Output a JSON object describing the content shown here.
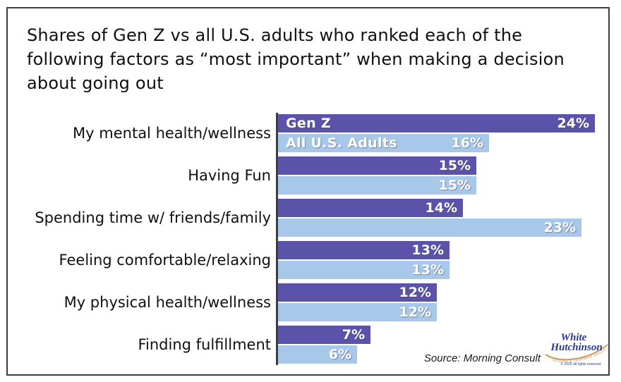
{
  "title_lines": [
    "Shares of Gen Z vs all U.S. adults who ranked each of the",
    "following factors as “most important” when making a decision",
    "about going out"
  ],
  "chart_data": {
    "type": "bar",
    "orientation": "horizontal",
    "title": "Shares of Gen Z vs all U.S. adults who ranked each of the following factors as “most important” when making a decision about going out",
    "categories": [
      "My mental health/wellness",
      "Having Fun",
      "Spending time w/ friends/family",
      "Feeling comfortable/relaxing",
      "My physical health/wellness",
      "Finding fulfillment"
    ],
    "series": [
      {
        "name": "Gen Z",
        "color": "#5b52a9",
        "values": [
          24,
          15,
          14,
          13,
          12,
          7
        ]
      },
      {
        "name": "All U.S. Adults",
        "color": "#a7c8e9",
        "values": [
          16,
          15,
          23,
          13,
          12,
          6
        ]
      }
    ],
    "value_suffix": "%",
    "xlim": [
      0,
      24
    ],
    "grid": false,
    "legend_position": "inside-first-bar-pair",
    "value_labels": "inside-end"
  },
  "source_note": "Source: Morning Consult",
  "logo": {
    "line1": "White",
    "line2": "Hutchinson",
    "tagline": "LEISURE & LEARNING GROUP",
    "copyright": "© 2025 all rights reserved",
    "navy_color": "#2b3a8c",
    "tan_color": "#d09a5e"
  },
  "colors": {
    "frame_border": "#3d3d3d",
    "axis_line": "#3d3d3d",
    "genz_bar": "#5b52a9",
    "adults_bar": "#a7c8e9",
    "bar_text": "#ffffff",
    "title_text": "#101010"
  }
}
